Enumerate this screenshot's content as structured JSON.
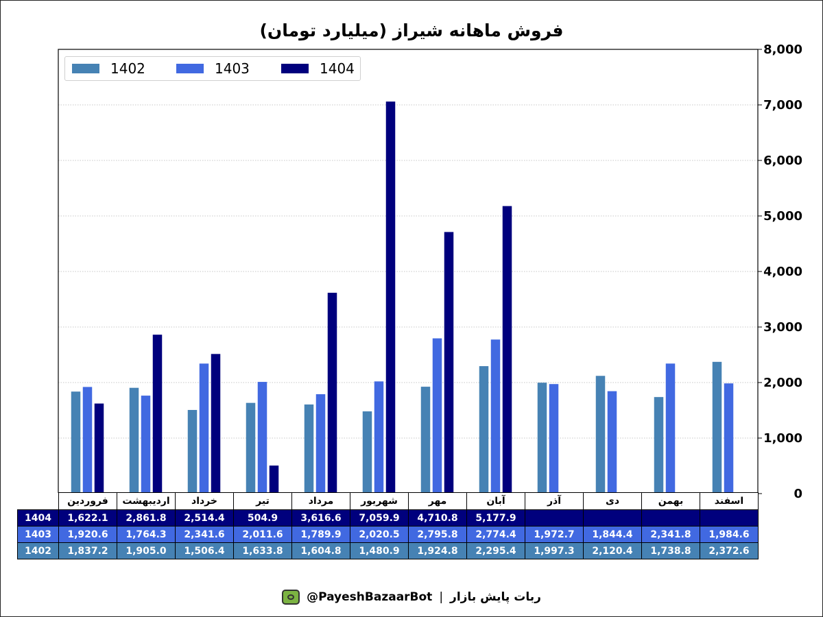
{
  "chart_data": {
    "type": "bar",
    "title": "فروش ماهانه شیراز (میلیارد تومان)",
    "categories": [
      "فروردین",
      "اردیبهشت",
      "خرداد",
      "تیر",
      "مرداد",
      "شهریور",
      "مهر",
      "آبان",
      "آذر",
      "دی",
      "بهمن",
      "اسفند"
    ],
    "series": [
      {
        "name": "1402",
        "color": "#4682b4",
        "values": [
          1837.2,
          1905.0,
          1506.4,
          1633.8,
          1604.8,
          1480.9,
          1924.8,
          2295.4,
          1997.3,
          2120.4,
          1738.8,
          2372.6
        ]
      },
      {
        "name": "1403",
        "color": "#4169e1",
        "values": [
          1920.6,
          1764.3,
          2341.6,
          2011.6,
          1789.9,
          2020.5,
          2795.8,
          2774.4,
          1972.7,
          1844.4,
          2341.8,
          1984.6
        ]
      },
      {
        "name": "1404",
        "color": "#00007d",
        "values": [
          1622.1,
          2861.8,
          2514.4,
          504.9,
          3616.6,
          7059.9,
          4710.8,
          5177.9,
          null,
          null,
          null,
          null
        ]
      }
    ],
    "ylim": [
      0,
      8000
    ],
    "yticks": [
      "0",
      "1,000",
      "2,000",
      "3,000",
      "4,000",
      "5,000",
      "6,000",
      "7,000",
      "8,000"
    ],
    "y_axis_side": "right",
    "grid": "horizontal dotted",
    "legend_position": "top-left",
    "table": {
      "rows": [
        {
          "label": "1404",
          "cells": [
            "1,622.1",
            "2,861.8",
            "2,514.4",
            "504.9",
            "3,616.6",
            "7,059.9",
            "4,710.8",
            "5,177.9",
            "",
            "",
            "",
            ""
          ]
        },
        {
          "label": "1403",
          "cells": [
            "1,920.6",
            "1,764.3",
            "2,341.6",
            "2,011.6",
            "1,789.9",
            "2,020.5",
            "2,795.8",
            "2,774.4",
            "1,972.7",
            "1,844.4",
            "2,341.8",
            "1,984.6"
          ]
        },
        {
          "label": "1402",
          "cells": [
            "1,837.2",
            "1,905.0",
            "1,506.4",
            "1,633.8",
            "1,604.8",
            "1,480.9",
            "1,924.8",
            "2,295.4",
            "1,997.3",
            "2,120.4",
            "1,738.8",
            "2,372.6"
          ]
        }
      ]
    }
  },
  "footer": {
    "handle": "@PayeshBazaarBot",
    "separator": "|",
    "brand": "ربات پایش بازار",
    "icon": "monitor-bot-icon"
  }
}
